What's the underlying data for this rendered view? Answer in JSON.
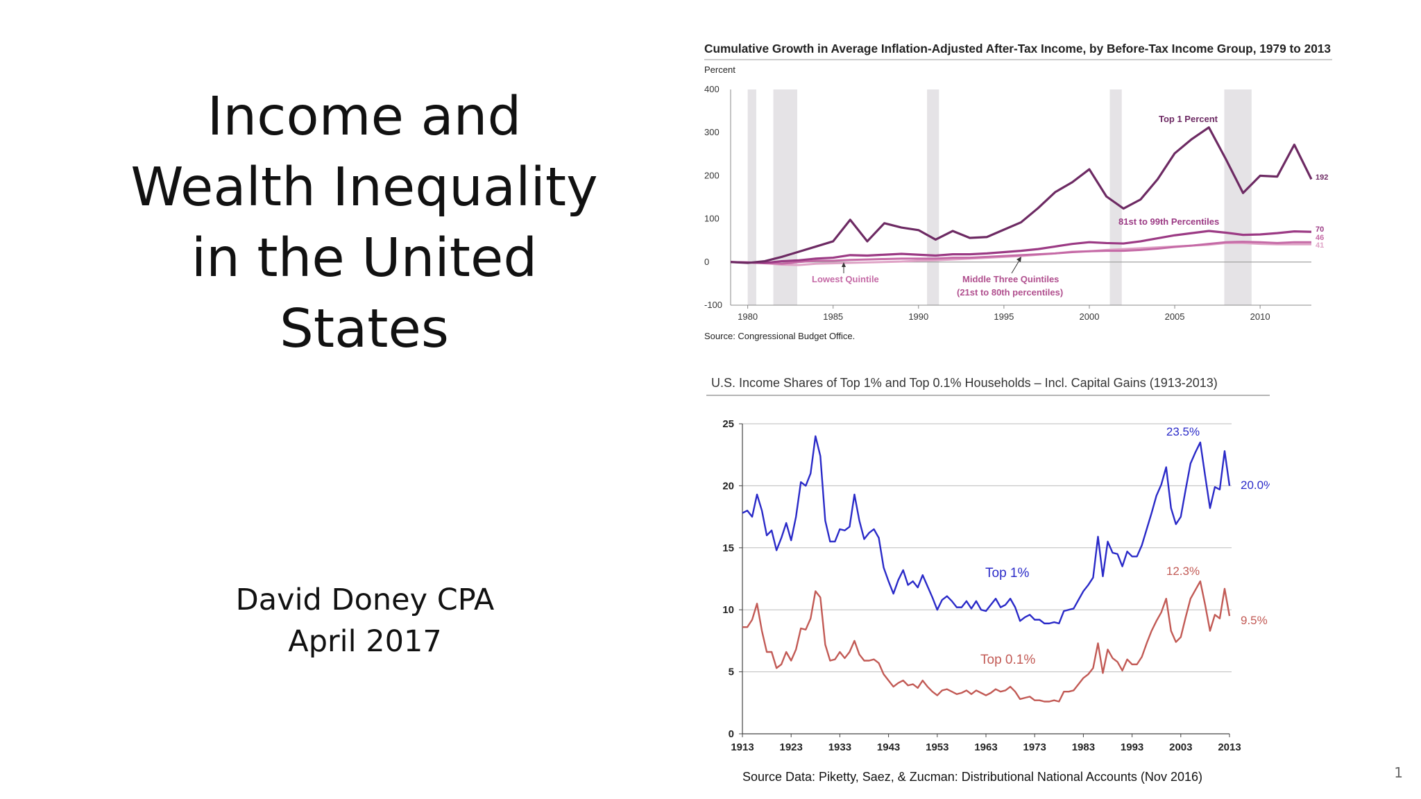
{
  "slide": {
    "title_lines": [
      "Income and",
      "Wealth Inequality",
      "in the United",
      "States"
    ],
    "author": "David Doney CPA",
    "date": "April 2017",
    "page_number": "1"
  },
  "chart_data": [
    {
      "type": "line",
      "title": "Cumulative Growth in Average Inflation-Adjusted After-Tax Income, by Before-Tax Income Group, 1979 to 2013",
      "ylabel": "Percent",
      "source": "Source: Congressional Budget Office.",
      "xlim": [
        1979,
        2013
      ],
      "ylim": [
        -100,
        400
      ],
      "y_ticks": [
        "400",
        "300",
        "200",
        "100",
        "0",
        "-100"
      ],
      "y_tick_values": [
        400,
        300,
        200,
        100,
        0,
        -100
      ],
      "x_ticks": [
        "1980",
        "1985",
        "1990",
        "1995",
        "2000",
        "2005",
        "2010"
      ],
      "x_tick_values": [
        1980,
        1985,
        1990,
        1995,
        2000,
        2005,
        2010
      ],
      "recessions": [
        [
          1980.0,
          1980.5
        ],
        [
          1981.5,
          1982.9
        ],
        [
          1990.5,
          1991.2
        ],
        [
          2001.2,
          2001.9
        ],
        [
          2007.9,
          2009.5
        ]
      ],
      "x": [
        1979,
        1980,
        1981,
        1982,
        1983,
        1984,
        1985,
        1986,
        1987,
        1988,
        1989,
        1990,
        1991,
        1992,
        1993,
        1994,
        1995,
        1996,
        1997,
        1998,
        1999,
        2000,
        2001,
        2002,
        2003,
        2004,
        2005,
        2006,
        2007,
        2008,
        2009,
        2010,
        2011,
        2012,
        2013
      ],
      "series": [
        {
          "name": "Top 1 Percent",
          "color": "#6d2a63",
          "end_label": "192",
          "values": [
            0,
            -2,
            2,
            12,
            24,
            36,
            48,
            98,
            48,
            90,
            80,
            74,
            52,
            72,
            56,
            58,
            75,
            92,
            125,
            162,
            185,
            215,
            152,
            124,
            145,
            192,
            252,
            285,
            312,
            238,
            160,
            200,
            198,
            272,
            192
          ]
        },
        {
          "name": "81st to 99th Percentiles",
          "color": "#9b3a84",
          "end_label": "70",
          "values": [
            0,
            -1,
            -2,
            2,
            4,
            8,
            10,
            16,
            15,
            17,
            19,
            17,
            15,
            18,
            18,
            20,
            23,
            26,
            30,
            36,
            42,
            46,
            44,
            43,
            48,
            55,
            62,
            67,
            72,
            68,
            63,
            64,
            67,
            71,
            70
          ]
        },
        {
          "name": "Middle Three Quintiles (21st to 80th percentiles)",
          "color": "#c56aa6",
          "end_label": "46",
          "values": [
            0,
            -1,
            -2,
            -4,
            0,
            3,
            3,
            5,
            6,
            7,
            8,
            8,
            8,
            10,
            10,
            12,
            14,
            16,
            18,
            20,
            23,
            25,
            26,
            26,
            28,
            31,
            35,
            38,
            42,
            46,
            47,
            46,
            44,
            46,
            46
          ]
        },
        {
          "name": "Lowest Quintile",
          "color": "#dfa3c6",
          "end_label": "41",
          "values": [
            0,
            -1,
            -3,
            -6,
            -7,
            -4,
            -3,
            -2,
            -1,
            0,
            1,
            3,
            4,
            6,
            8,
            10,
            12,
            14,
            17,
            20,
            24,
            25,
            28,
            30,
            32,
            34,
            36,
            38,
            40,
            44,
            44,
            42,
            41,
            41,
            41
          ]
        }
      ],
      "annotations": [
        {
          "text": "Top 1 Percent",
          "color": "#6d2a63"
        },
        {
          "text": "81st to 99th Percentiles",
          "color": "#9b3a84"
        },
        {
          "text": "Lowest Quintile",
          "color": "#c56aa6"
        },
        {
          "text": "Middle Three Quintiles",
          "color": "#b04f8e"
        },
        {
          "text": "(21st to 80th percentiles)",
          "color": "#b04f8e"
        }
      ]
    },
    {
      "type": "line",
      "title": "U.S. Income Shares of Top 1% and Top 0.1% Households – Incl. Capital Gains (1913-2013)",
      "source": "Source Data:  Piketty, Saez, & Zucman: Distributional National Accounts (Nov 2016)",
      "xlim": [
        1913,
        2013
      ],
      "ylim": [
        0,
        25
      ],
      "y_ticks": [
        "25",
        "20",
        "15",
        "10",
        "5",
        "0"
      ],
      "y_tick_values": [
        25,
        20,
        15,
        10,
        5,
        0
      ],
      "x_ticks": [
        "1913",
        "1923",
        "1933",
        "1943",
        "1953",
        "1963",
        "1973",
        "1983",
        "1993",
        "2003",
        "2013"
      ],
      "x_tick_values": [
        1913,
        1923,
        1933,
        1943,
        1953,
        1963,
        1973,
        1983,
        1993,
        2003,
        2013
      ],
      "series": [
        {
          "name": "Top 1%",
          "color": "#2a2ac8",
          "end_label": "20.0%",
          "peak_label": "23.5%",
          "x": [
            1913,
            1914,
            1915,
            1916,
            1917,
            1918,
            1919,
            1920,
            1921,
            1922,
            1923,
            1924,
            1925,
            1926,
            1927,
            1928,
            1929,
            1930,
            1931,
            1932,
            1933,
            1934,
            1935,
            1936,
            1937,
            1938,
            1939,
            1940,
            1941,
            1942,
            1943,
            1944,
            1945,
            1946,
            1947,
            1948,
            1949,
            1950,
            1951,
            1952,
            1953,
            1954,
            1955,
            1956,
            1957,
            1958,
            1959,
            1960,
            1961,
            1962,
            1963,
            1964,
            1965,
            1966,
            1967,
            1968,
            1969,
            1970,
            1971,
            1972,
            1973,
            1974,
            1975,
            1976,
            1977,
            1978,
            1979,
            1980,
            1981,
            1982,
            1983,
            1984,
            1985,
            1986,
            1987,
            1988,
            1989,
            1990,
            1991,
            1992,
            1993,
            1994,
            1995,
            1996,
            1997,
            1998,
            1999,
            2000,
            2001,
            2002,
            2003,
            2004,
            2005,
            2006,
            2007,
            2008,
            2009,
            2010,
            2011,
            2012,
            2013
          ],
          "values": [
            17.8,
            18.0,
            17.5,
            19.3,
            18.0,
            16.0,
            16.4,
            14.8,
            15.8,
            17.0,
            15.6,
            17.5,
            20.3,
            20.0,
            21.0,
            24.0,
            22.4,
            17.2,
            15.5,
            15.5,
            16.5,
            16.4,
            16.7,
            19.3,
            17.2,
            15.7,
            16.2,
            16.5,
            15.8,
            13.4,
            12.3,
            11.3,
            12.4,
            13.2,
            12.0,
            12.3,
            11.8,
            12.8,
            11.9,
            11.0,
            10.0,
            10.8,
            11.1,
            10.7,
            10.2,
            10.2,
            10.7,
            10.1,
            10.7,
            10.0,
            9.9,
            10.4,
            10.9,
            10.2,
            10.4,
            10.9,
            10.2,
            9.1,
            9.4,
            9.6,
            9.2,
            9.2,
            8.9,
            8.9,
            9.0,
            8.9,
            9.9,
            10.0,
            10.1,
            10.8,
            11.5,
            12.0,
            12.6,
            15.9,
            12.7,
            15.5,
            14.6,
            14.5,
            13.5,
            14.7,
            14.3,
            14.3,
            15.2,
            16.5,
            17.8,
            19.2,
            20.1,
            21.5,
            18.2,
            16.9,
            17.5,
            19.7,
            21.8,
            22.7,
            23.5,
            20.8,
            18.2,
            19.9,
            19.7,
            22.8,
            20.0
          ]
        },
        {
          "name": "Top 0.1%",
          "color": "#c25a55",
          "end_label": "9.5%",
          "peak_label": "12.3%",
          "x": [
            1913,
            1914,
            1915,
            1916,
            1917,
            1918,
            1919,
            1920,
            1921,
            1922,
            1923,
            1924,
            1925,
            1926,
            1927,
            1928,
            1929,
            1930,
            1931,
            1932,
            1933,
            1934,
            1935,
            1936,
            1937,
            1938,
            1939,
            1940,
            1941,
            1942,
            1943,
            1944,
            1945,
            1946,
            1947,
            1948,
            1949,
            1950,
            1951,
            1952,
            1953,
            1954,
            1955,
            1956,
            1957,
            1958,
            1959,
            1960,
            1961,
            1962,
            1963,
            1964,
            1965,
            1966,
            1967,
            1968,
            1969,
            1970,
            1971,
            1972,
            1973,
            1974,
            1975,
            1976,
            1977,
            1978,
            1979,
            1980,
            1981,
            1982,
            1983,
            1984,
            1985,
            1986,
            1987,
            1988,
            1989,
            1990,
            1991,
            1992,
            1993,
            1994,
            1995,
            1996,
            1997,
            1998,
            1999,
            2000,
            2001,
            2002,
            2003,
            2004,
            2005,
            2006,
            2007,
            2008,
            2009,
            2010,
            2011,
            2012,
            2013
          ],
          "values": [
            8.6,
            8.6,
            9.2,
            10.5,
            8.3,
            6.6,
            6.6,
            5.3,
            5.6,
            6.6,
            5.9,
            6.8,
            8.5,
            8.4,
            9.3,
            11.5,
            11.0,
            7.2,
            5.9,
            6.0,
            6.6,
            6.1,
            6.6,
            7.5,
            6.4,
            5.9,
            5.9,
            6.0,
            5.7,
            4.8,
            4.3,
            3.8,
            4.1,
            4.3,
            3.9,
            4.0,
            3.7,
            4.3,
            3.8,
            3.4,
            3.1,
            3.5,
            3.6,
            3.4,
            3.2,
            3.3,
            3.5,
            3.2,
            3.5,
            3.3,
            3.1,
            3.3,
            3.6,
            3.4,
            3.5,
            3.8,
            3.4,
            2.8,
            2.9,
            3.0,
            2.7,
            2.7,
            2.6,
            2.6,
            2.7,
            2.6,
            3.4,
            3.4,
            3.5,
            4.0,
            4.5,
            4.8,
            5.3,
            7.3,
            4.9,
            6.8,
            6.1,
            5.8,
            5.1,
            6.0,
            5.6,
            5.6,
            6.2,
            7.3,
            8.3,
            9.1,
            9.8,
            10.9,
            8.3,
            7.4,
            7.8,
            9.4,
            10.9,
            11.6,
            12.3,
            10.4,
            8.3,
            9.6,
            9.3,
            11.7,
            9.5
          ]
        }
      ],
      "annotations": [
        {
          "text": "Top 1%",
          "color": "#2a2ac8"
        },
        {
          "text": "Top 0.1%",
          "color": "#c25a55"
        }
      ]
    }
  ]
}
